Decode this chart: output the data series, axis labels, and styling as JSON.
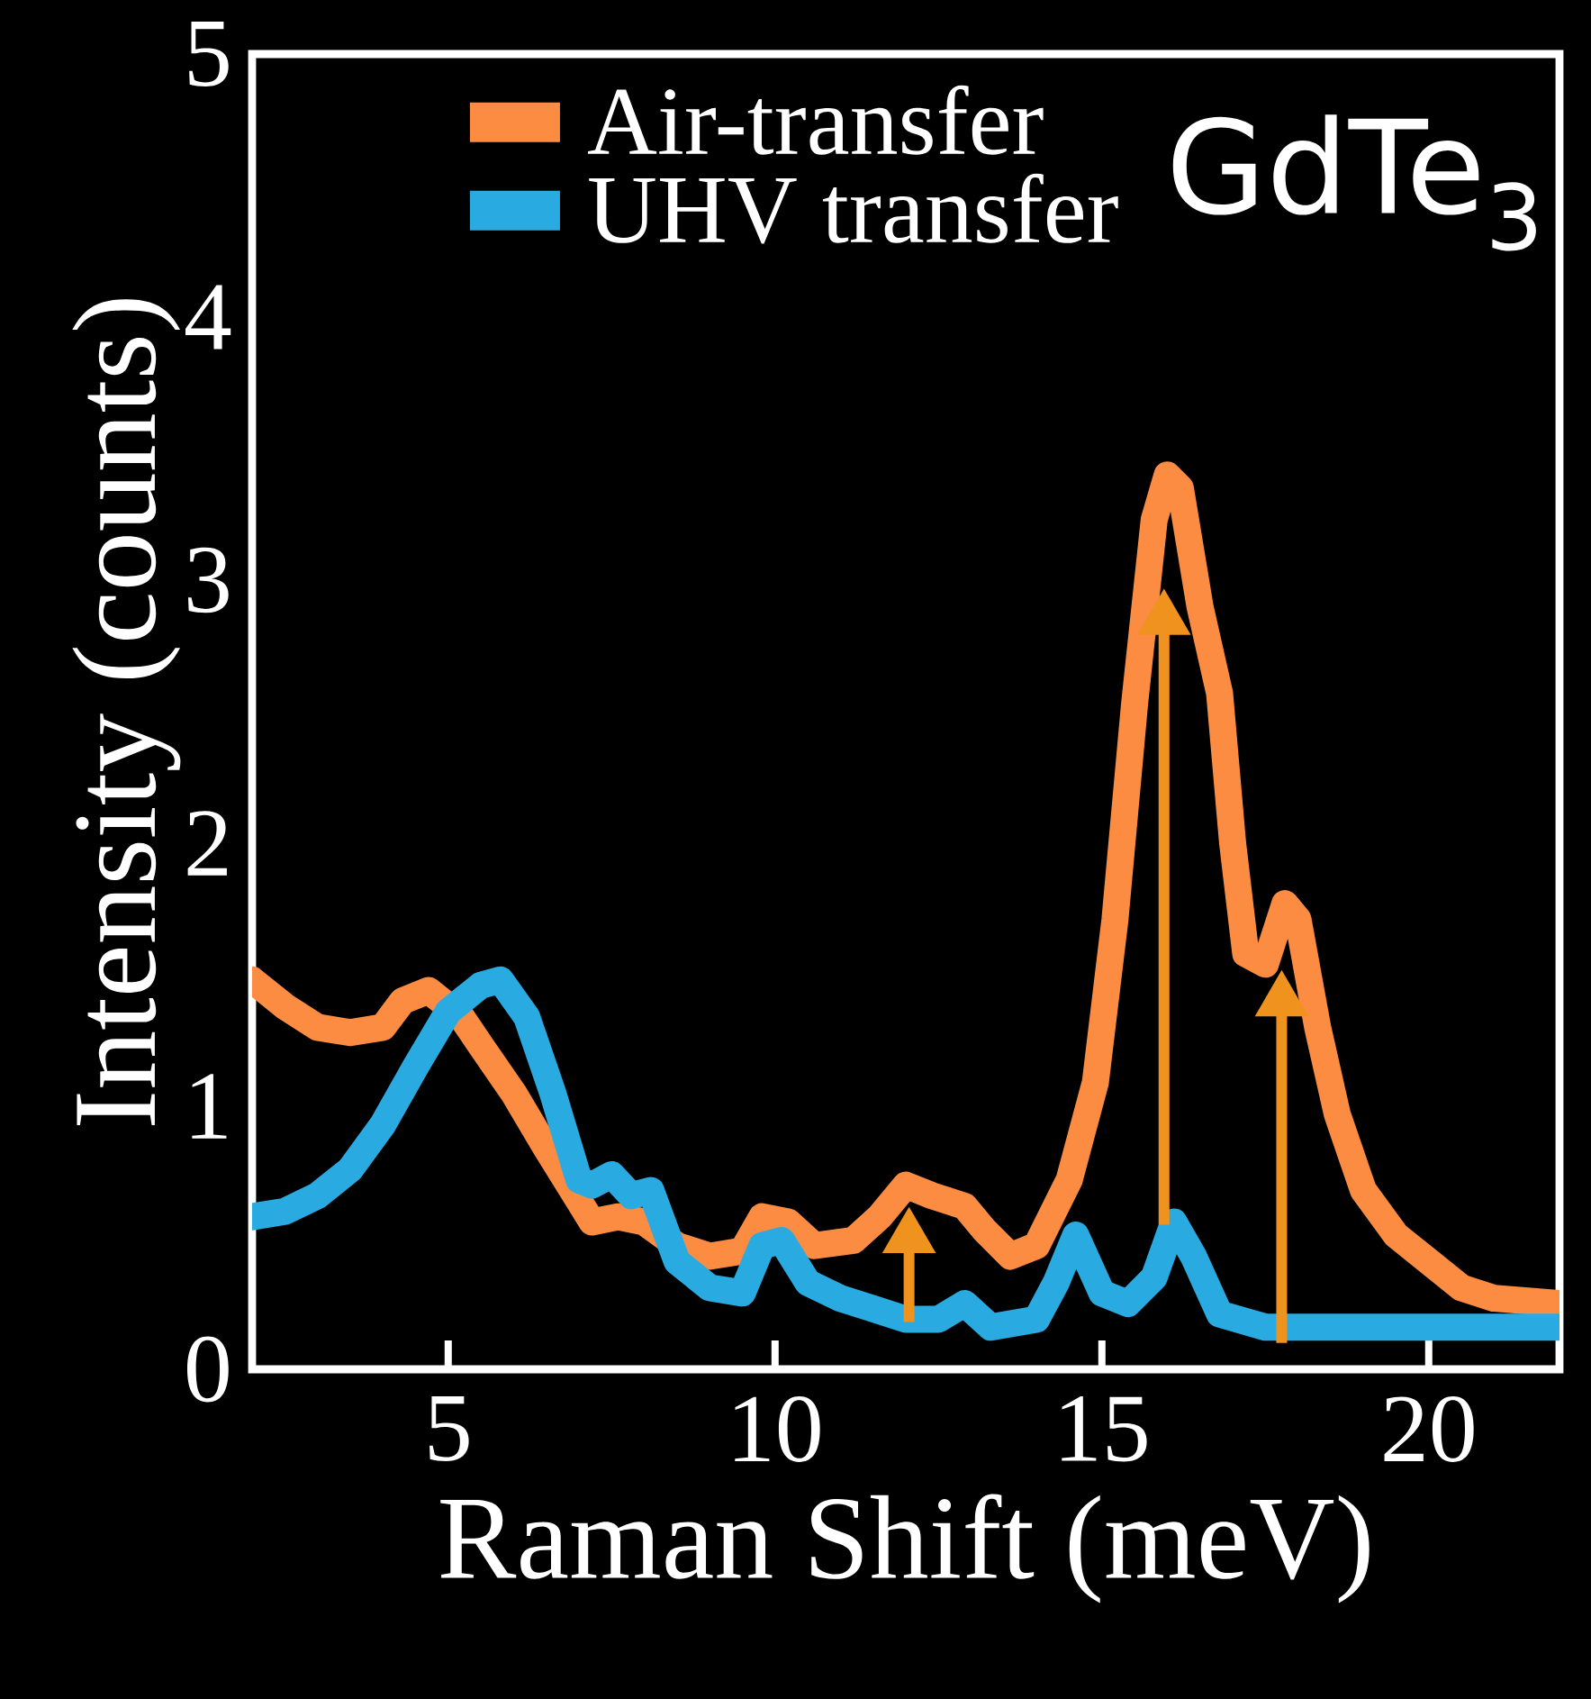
{
  "chart_data": {
    "type": "line",
    "xlabel": "Raman Shift (meV)",
    "ylabel": "Intensity (counts)",
    "xlim": [
      2,
      22
    ],
    "xticks": [
      5,
      10,
      15,
      20
    ],
    "ylim": [
      0,
      5
    ],
    "yticks": [
      0,
      1,
      2,
      3,
      4,
      5
    ],
    "legend": "top",
    "grid": false,
    "marker": "none",
    "line_style": "solid",
    "annotations": [
      "GdTe$_{3}$"
    ],
    "series": [
      {
        "name": "Air-transfer",
        "color": "#fd8c43",
        "x": [
          2,
          2.5,
          3,
          3.5,
          4,
          4.3,
          4.7,
          5.2,
          5.5,
          6,
          6.5,
          7,
          7.2,
          7.6,
          8,
          8.5,
          9,
          9.5,
          9.8,
          10.2,
          10.6,
          11.2,
          11.6,
          12,
          12.4,
          12.9,
          13.2,
          13.6,
          14,
          14.5,
          14.9,
          15.2,
          15.5,
          15.8,
          16.0,
          16.2,
          16.5,
          16.8,
          17.0,
          17.2,
          17.5,
          17.8,
          18.0,
          18.3,
          18.6,
          19.0,
          19.5,
          20,
          20.5,
          21,
          22
        ],
        "values": [
          1.48,
          1.38,
          1.3,
          1.28,
          1.3,
          1.4,
          1.44,
          1.34,
          1.23,
          1.05,
          0.84,
          0.64,
          0.56,
          0.58,
          0.56,
          0.47,
          0.43,
          0.45,
          0.58,
          0.56,
          0.47,
          0.49,
          0.58,
          0.7,
          0.66,
          0.62,
          0.53,
          0.43,
          0.47,
          0.72,
          1.09,
          1.71,
          2.53,
          3.23,
          3.4,
          3.35,
          2.9,
          2.57,
          2.0,
          1.58,
          1.54,
          1.77,
          1.71,
          1.3,
          0.97,
          0.68,
          0.51,
          0.41,
          0.31,
          0.27,
          0.25
        ]
      },
      {
        "name": "UHV transfer",
        "color": "#29abe2",
        "x": [
          2,
          2.5,
          3,
          3.5,
          4,
          4.5,
          5,
          5.5,
          5.8,
          6.2,
          6.6,
          7,
          7.2,
          7.5,
          7.8,
          8.1,
          8.5,
          9,
          9.5,
          9.8,
          10.1,
          10.5,
          11,
          11.5,
          12,
          12.5,
          12.9,
          13.3,
          14,
          14.3,
          14.6,
          15,
          15.4,
          15.8,
          16.1,
          16.4,
          16.8,
          17.5,
          19,
          20,
          22
        ],
        "values": [
          0.58,
          0.6,
          0.66,
          0.76,
          0.93,
          1.15,
          1.36,
          1.46,
          1.48,
          1.34,
          1.05,
          0.72,
          0.7,
          0.74,
          0.66,
          0.68,
          0.41,
          0.31,
          0.29,
          0.47,
          0.49,
          0.33,
          0.27,
          0.23,
          0.19,
          0.19,
          0.25,
          0.16,
          0.19,
          0.33,
          0.51,
          0.29,
          0.25,
          0.35,
          0.56,
          0.43,
          0.21,
          0.16,
          0.16,
          0.16,
          0.16
        ]
      }
    ]
  }
}
